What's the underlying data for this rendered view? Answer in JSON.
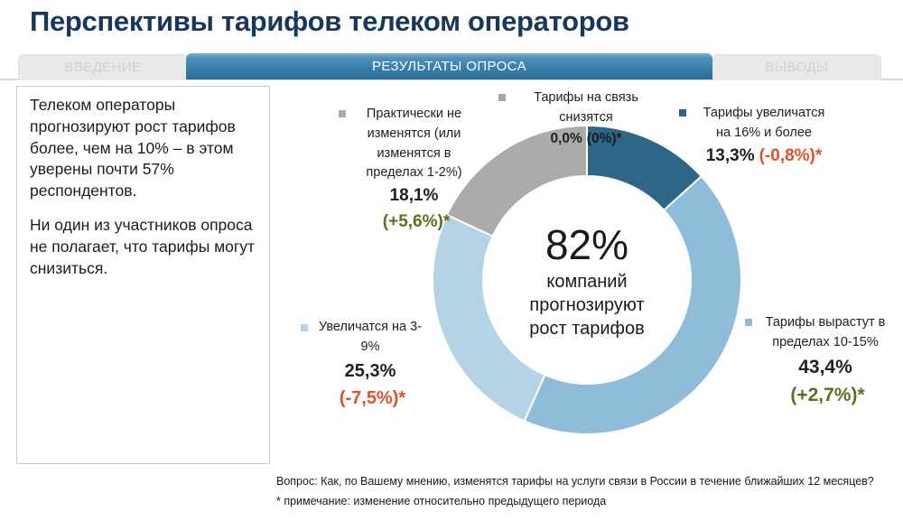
{
  "slide": {
    "title": "Перспективы тарифов телеком операторов",
    "tabs": [
      {
        "label": "ВВЕДЕНИЕ",
        "active": false
      },
      {
        "label": "РЕЗУЛЬТАТЫ ОПРОСА",
        "active": true
      },
      {
        "label": "ВЫВОДЫ",
        "active": false
      }
    ]
  },
  "insight_panel": {
    "paragraph1": "Телеком операторы прогнозируют рост тарифов более, чем на 10% – в этом уверены почти 57% респондентов.",
    "paragraph2": "Ни один из участников опроса не полагает, что тарифы могут снизиться."
  },
  "chart_data": {
    "type": "pie",
    "subtype": "donut",
    "title": "",
    "units": "%",
    "start_angle_deg": 0,
    "direction": "clockwise",
    "legend_position": "around",
    "center_label": {
      "value": "82%",
      "text": "компаний\nпрогнозируют\nрост тарифов"
    },
    "segments": [
      {
        "name": "Тарифы увеличатся\nна 16% и более",
        "value": 13.3,
        "value_label": "13,3%",
        "change": -0.8,
        "change_label": "(-0,8%)*",
        "color": "#2E6687",
        "change_color": "#E0502F"
      },
      {
        "name": "Тарифы вырастут в\nпределах 10-15%",
        "value": 43.4,
        "value_label": "43,4%",
        "change": 2.7,
        "change_label": "(+2,7%)*",
        "color": "#8FBCD9",
        "change_color": "#5F6E1E"
      },
      {
        "name": "Увеличатся на 3-9%",
        "value": 25.3,
        "value_label": "25,3%",
        "change": -7.5,
        "change_label": "(-7,5%)*",
        "color": "#B5D3E5",
        "change_color": "#E0502F"
      },
      {
        "name": "Практически не\nизменятся (или\nизменятся в\nпределах 1-2%)",
        "value": 18.1,
        "value_label": "18,1%",
        "change": 5.6,
        "change_label": "(+5,6%)*",
        "color": "#ABABAB",
        "change_color": "#5F6E1E"
      },
      {
        "name": "Тарифы на связь снизятся",
        "value": 0.0,
        "value_label": "0,0%",
        "change": 0,
        "change_label": "(0%)*",
        "color": "#A6A6A6",
        "change_color": "#1A1A1A"
      }
    ]
  },
  "footnotes": {
    "question": "Вопрос: Как, по Вашему мнению, изменятся тарифы на услуги связи в России в течение ближайших 12 месяцев?",
    "note": "* примечание: изменение относительно предыдущего периода"
  }
}
